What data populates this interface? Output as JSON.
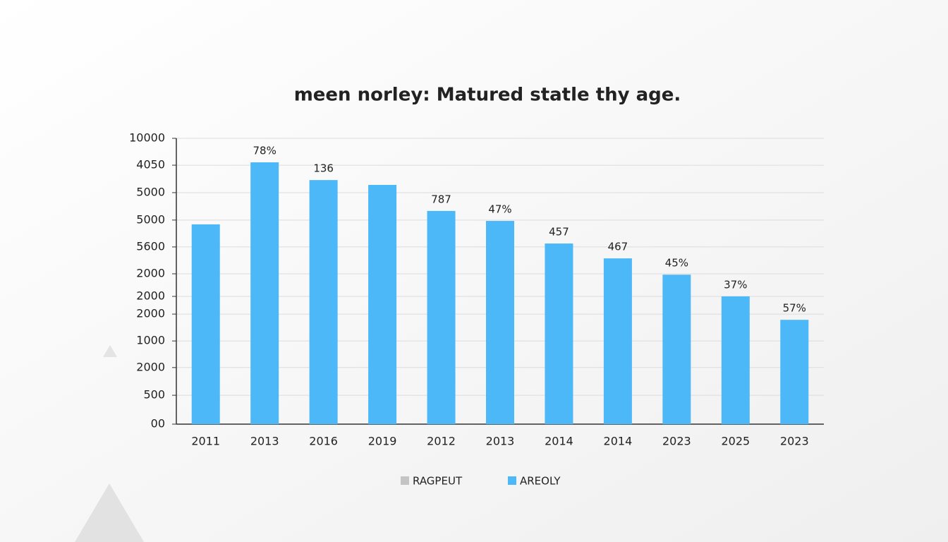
{
  "chart_data": {
    "type": "bar",
    "title": "meen norley: Matured statle thy age.",
    "categories": [
      "2011",
      "2013",
      "2016",
      "2019",
      "2012",
      "2013",
      "2014",
      "2014",
      "2023",
      "2025",
      "2023"
    ],
    "values": [
      6990,
      9160,
      8540,
      8370,
      7460,
      7110,
      6320,
      5800,
      5230,
      4470,
      3650
    ],
    "bar_labels": [
      null,
      "78%",
      "136",
      null,
      "787",
      "47%",
      "457",
      "467",
      "45%",
      "37%",
      "57%"
    ],
    "color": "#4db8f8",
    "ylim": [
      0,
      10000
    ],
    "yticks": [
      {
        "value": 0,
        "label": "00"
      },
      {
        "value": 1010,
        "label": "500"
      },
      {
        "value": 1980,
        "label": "2000"
      },
      {
        "value": 2910,
        "label": "1000"
      },
      {
        "value": 3850,
        "label": "2000"
      },
      {
        "value": 4470,
        "label": "2000"
      },
      {
        "value": 5260,
        "label": "2000"
      },
      {
        "value": 6200,
        "label": "5600"
      },
      {
        "value": 7140,
        "label": "5000"
      },
      {
        "value": 8100,
        "label": "5000"
      },
      {
        "value": 9060,
        "label": "4050"
      },
      10000
    ],
    "grid": true,
    "legend": [
      {
        "label": "RAGPEUT",
        "color": "#c4c4c4"
      },
      {
        "label": "AREOLY",
        "color": "#4db8f8"
      }
    ]
  }
}
